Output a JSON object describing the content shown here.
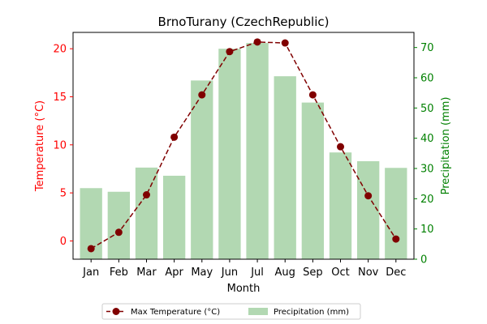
{
  "chart_data": {
    "type": "bar+line",
    "title": "BrnoTurany (CzechRepublic)",
    "xlabel": "Month",
    "categories": [
      "Jan",
      "Feb",
      "Mar",
      "Apr",
      "May",
      "Jun",
      "Jul",
      "Aug",
      "Sep",
      "Oct",
      "Nov",
      "Dec"
    ],
    "left_axis": {
      "label": "Temperature (°C)",
      "color": "#ff0000",
      "ylim": [
        -1.9,
        21.7
      ],
      "ticks": [
        0,
        5,
        10,
        15,
        20
      ],
      "tick_labels": [
        "0",
        "5",
        "10",
        "15",
        "20"
      ]
    },
    "right_axis": {
      "label": "Precipitation (mm)",
      "color": "#008000",
      "ylim": [
        0,
        75
      ],
      "ticks": [
        0,
        10,
        20,
        30,
        40,
        50,
        60,
        70
      ],
      "tick_labels": [
        "0",
        "10",
        "20",
        "30",
        "40",
        "50",
        "60",
        "70"
      ]
    },
    "series": [
      {
        "name": "Max Temperature (°C)",
        "kind": "line",
        "axis": "left",
        "color": "#800000",
        "values": [
          -0.8,
          0.9,
          4.8,
          10.8,
          15.2,
          19.7,
          20.7,
          20.6,
          15.2,
          9.8,
          4.7,
          0.2
        ]
      },
      {
        "name": "Precipitation (mm)",
        "kind": "bar",
        "axis": "right",
        "color": "#b2d8b2",
        "values": [
          23.5,
          22.3,
          30.3,
          27.6,
          59.1,
          69.6,
          71.5,
          60.5,
          51.8,
          35.3,
          32.4,
          30.2
        ]
      }
    ],
    "legend": {
      "placement": "bottom-center",
      "entries": [
        "Max Temperature (°C)",
        "Precipitation (mm)"
      ]
    }
  }
}
